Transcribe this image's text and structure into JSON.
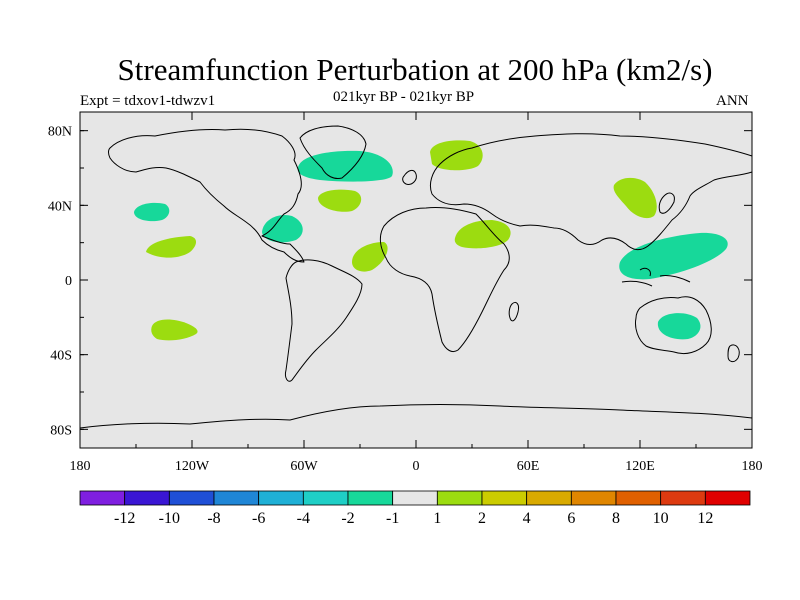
{
  "figure": {
    "title": "Streamfunction Perturbation at 200 hPa (km2/s)",
    "left_string": "Expt = tdxov1-tdwzv1",
    "center_string": "021kyr BP - 021kyr BP",
    "right_string": "ANN"
  },
  "axes": {
    "y_ticks": [
      "80N",
      "40N",
      "0",
      "40S",
      "80S"
    ],
    "x_ticks": [
      "180",
      "120W",
      "60W",
      "0",
      "60E",
      "120E",
      "180"
    ]
  },
  "colorbar": {
    "colors": [
      "#7f1fe0",
      "#3a16d4",
      "#1f4fd6",
      "#1f86d6",
      "#1fb0d6",
      "#1fcfc6",
      "#17d89a",
      "#e6e6e6",
      "#9cdc10",
      "#cbcc00",
      "#d9aa00",
      "#e08600",
      "#e06000",
      "#dd3a10",
      "#e00000"
    ],
    "labels": [
      "-12",
      "-10",
      "-8",
      "-6",
      "-4",
      "-2",
      "-1",
      "1",
      "2",
      "4",
      "6",
      "8",
      "10",
      "12"
    ]
  },
  "map_style": {
    "background_color": "#e6e6e6",
    "negative_color": "#17d89a",
    "positive_color": "#9cdc10"
  }
}
